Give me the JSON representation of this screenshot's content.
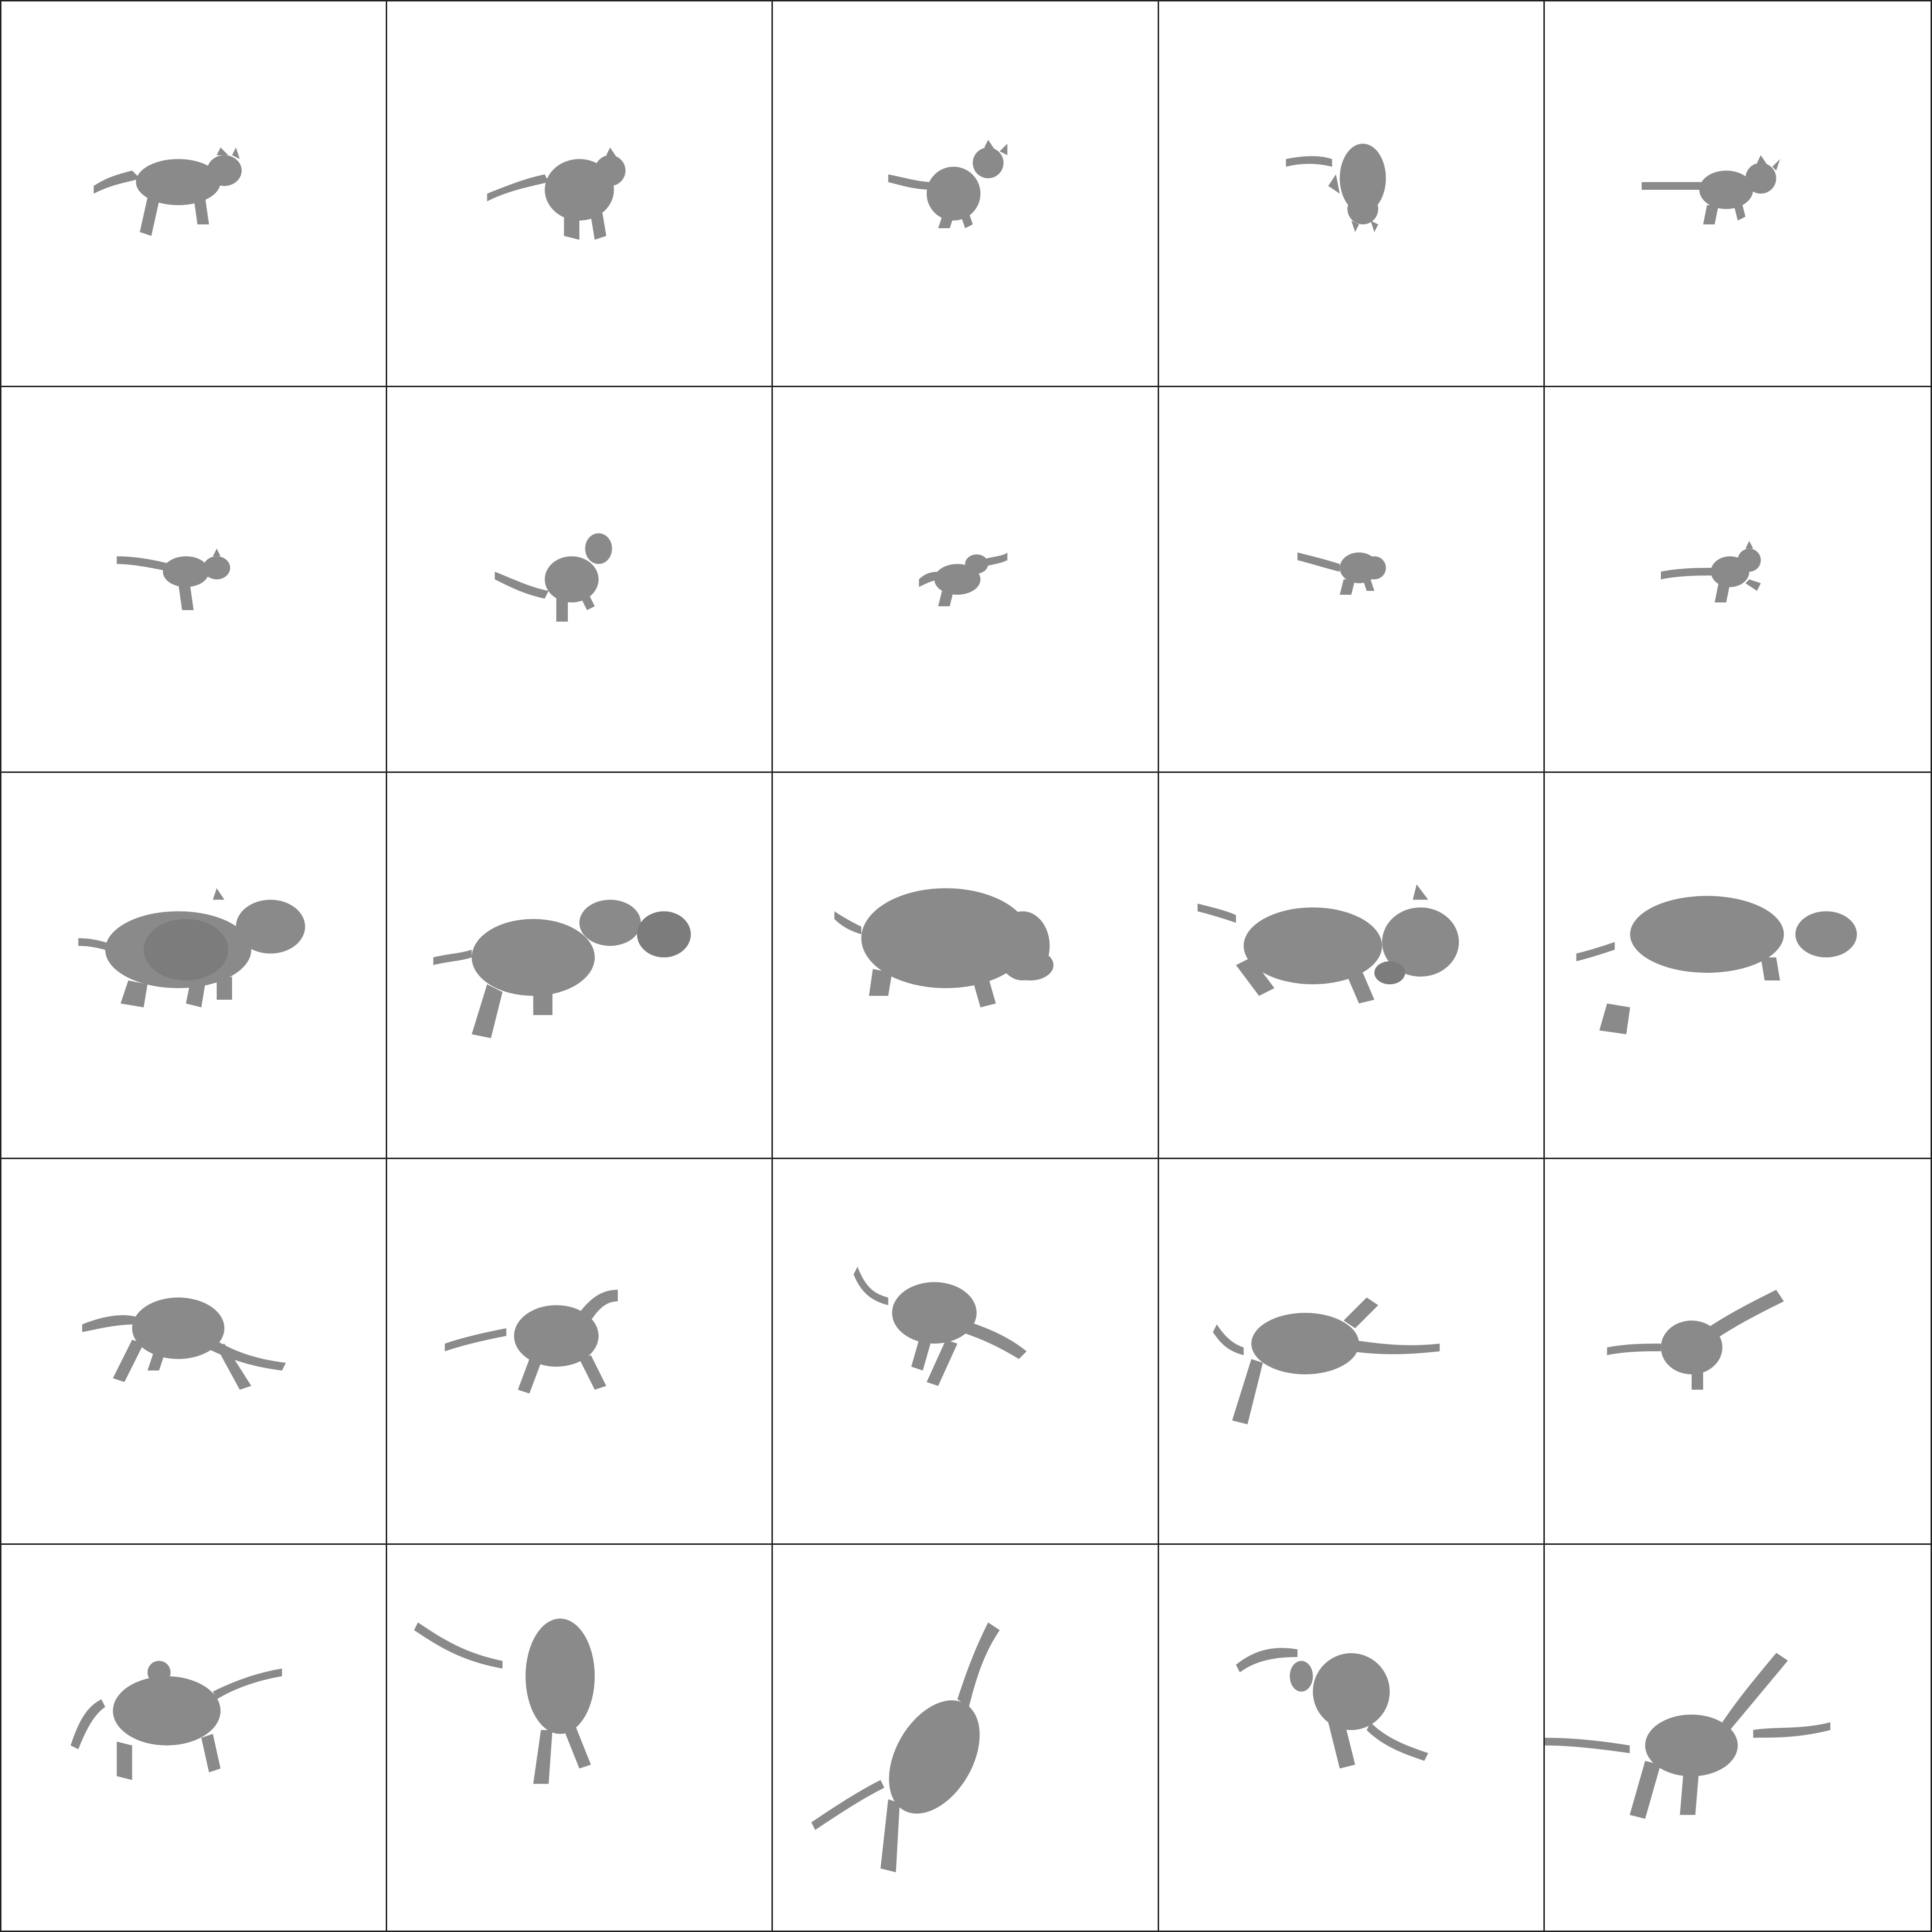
{
  "grid": {
    "rows": 5,
    "cols": 5
  },
  "colors": {
    "background": "#ffffff",
    "border": "#222222",
    "mesh": "#8a8a8a",
    "mesh_shadow": "#7c7c7c"
  },
  "cells": [
    {
      "subject": "cat"
    },
    {
      "subject": "cat"
    },
    {
      "subject": "cat"
    },
    {
      "subject": "cat"
    },
    {
      "subject": "cat"
    },
    {
      "subject": "cat"
    },
    {
      "subject": "cat"
    },
    {
      "subject": "cat"
    },
    {
      "subject": "cat"
    },
    {
      "subject": "cat"
    },
    {
      "subject": "hippo"
    },
    {
      "subject": "hippo"
    },
    {
      "subject": "hippo"
    },
    {
      "subject": "hippo"
    },
    {
      "subject": "hippo"
    },
    {
      "subject": "horse"
    },
    {
      "subject": "horse"
    },
    {
      "subject": "horse"
    },
    {
      "subject": "horse"
    },
    {
      "subject": "horse"
    },
    {
      "subject": "horse"
    },
    {
      "subject": "horse"
    },
    {
      "subject": "horse"
    },
    {
      "subject": "horse"
    },
    {
      "subject": "horse"
    }
  ]
}
